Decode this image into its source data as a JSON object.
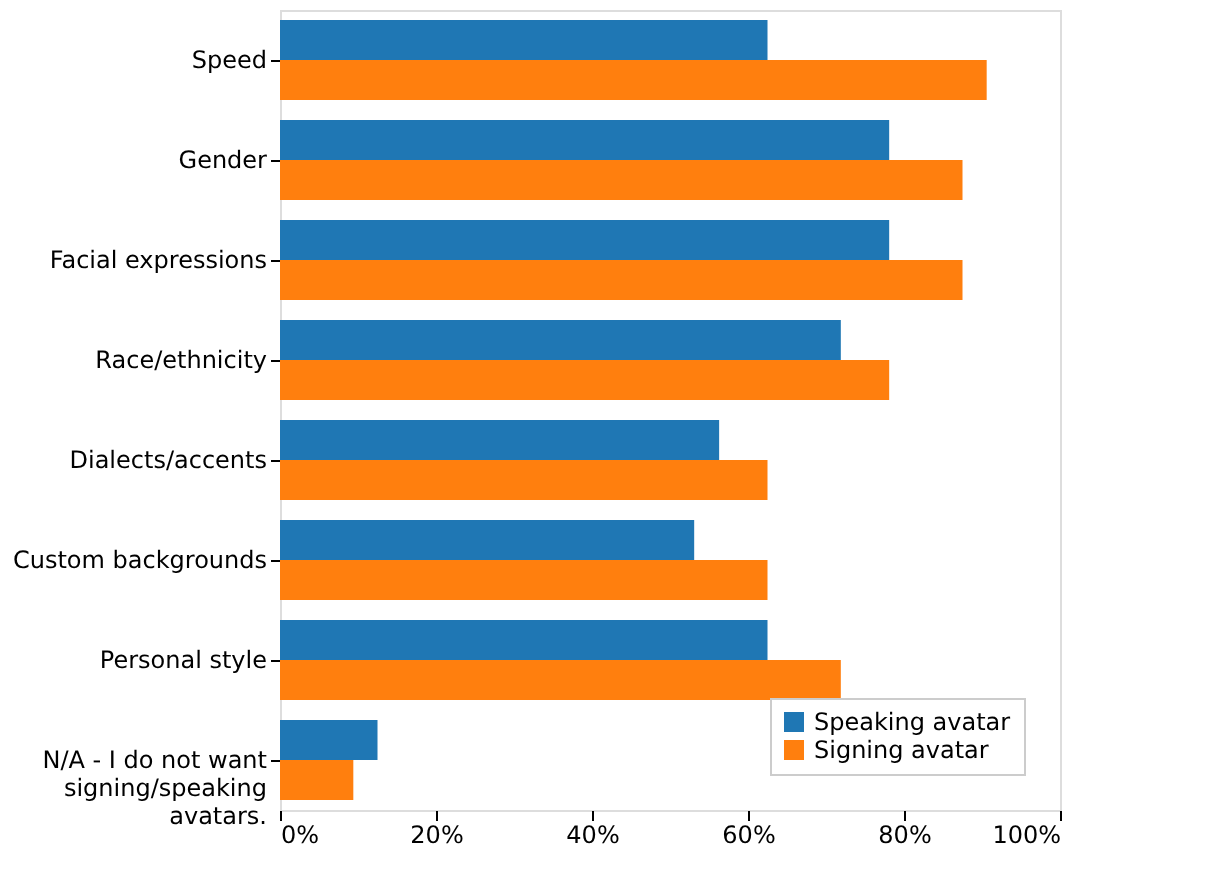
{
  "chart_data": {
    "type": "bar",
    "orientation": "horizontal",
    "categories": [
      "Speed",
      "Gender",
      "Facial expressions",
      "Race/ethnicity",
      "Dialects/accents",
      "Custom backgrounds",
      "Personal style",
      "N/A - I do not want signing/speaking avatars."
    ],
    "series": [
      {
        "name": "Speaking avatar",
        "color": "#1f77b4",
        "values": [
          62.5,
          78.1,
          78.1,
          71.9,
          56.3,
          53.1,
          62.5,
          12.5
        ]
      },
      {
        "name": "Signing avatar",
        "color": "#ff7f0e",
        "values": [
          90.6,
          87.5,
          87.5,
          78.1,
          62.5,
          62.5,
          71.9,
          9.4
        ]
      }
    ],
    "xlim": [
      0,
      100
    ],
    "xticks": [
      {
        "value": 0,
        "label": "0%"
      },
      {
        "value": 20,
        "label": "20%"
      },
      {
        "value": 40,
        "label": "40%"
      },
      {
        "value": 60,
        "label": "60%"
      },
      {
        "value": 80,
        "label": "80%"
      },
      {
        "value": 100,
        "label": "100%"
      }
    ],
    "grid": false,
    "legend": "bottom right"
  }
}
